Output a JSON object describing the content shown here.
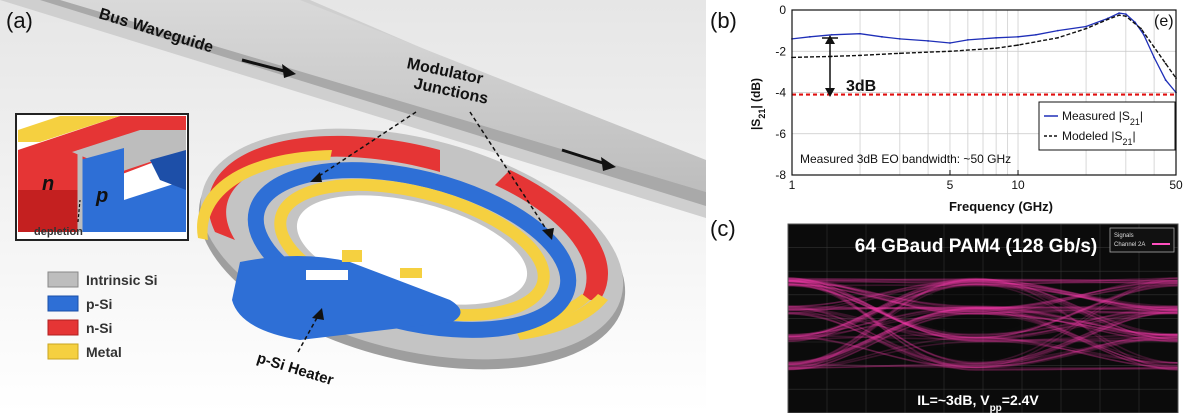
{
  "panel_a": {
    "label": "(a)",
    "bus_waveguide": "Bus Waveguide",
    "modulator_junctions": [
      "Modulator",
      "Junctions"
    ],
    "heater": "p-Si Heater",
    "inset_n": "n",
    "inset_p": "p",
    "inset_depletion": "depletion",
    "legend": [
      {
        "label": "Intrinsic Si",
        "color": "#bdbdbd"
      },
      {
        "label": "p-Si",
        "color": "#2e6fd6"
      },
      {
        "label": "n-Si",
        "color": "#e53535"
      },
      {
        "label": "Metal",
        "color": "#f5d040"
      }
    ]
  },
  "panel_b": {
    "label": "(b)",
    "corner_label": "(e)",
    "annotation_3db": "3dB",
    "bandwidth_note": "Measured  3dB EO bandwidth: ~50 GHz",
    "legend_measured": "Measured |S21|",
    "legend_modeled": "Modeled |S21|",
    "xlabel": "Frequency (GHz)",
    "ylabel": "|S21| (dB)"
  },
  "panel_c": {
    "label": "(c)",
    "title": "64 GBaud PAM4 (128 Gb/s)",
    "footer": "IL=~3dB, Vpp=2.4V",
    "signals_box": [
      "Signals",
      "Channel 2A"
    ]
  },
  "chart_data": {
    "type": "line",
    "xscale": "log",
    "xlabel": "Frequency (GHz)",
    "ylabel": "|S21| (dB)",
    "xlim": [
      1,
      50
    ],
    "ylim": [
      -8,
      0
    ],
    "xticks": [
      1,
      5,
      10,
      50
    ],
    "yticks": [
      0,
      -2,
      -4,
      -6,
      -8
    ],
    "grid": true,
    "legend_position": "lower-right",
    "reference_line_y": -4.1,
    "series": [
      {
        "name": "Measured |S21|",
        "color": "#1f2fb8",
        "style": "solid",
        "x": [
          1,
          1.2,
          1.5,
          2,
          2.5,
          3,
          4,
          5,
          6,
          8,
          10,
          12,
          15,
          20,
          25,
          28,
          30,
          33,
          36,
          40,
          45,
          50
        ],
        "y": [
          -1.4,
          -1.3,
          -1.2,
          -1.15,
          -1.3,
          -1.4,
          -1.5,
          -1.6,
          -1.45,
          -1.35,
          -1.3,
          -1.2,
          -1.0,
          -0.8,
          -0.4,
          -0.15,
          -0.2,
          -0.6,
          -1.2,
          -2.3,
          -3.4,
          -4.0
        ]
      },
      {
        "name": "Modeled |S21|",
        "color": "#111111",
        "style": "dashed",
        "x": [
          1,
          1.5,
          2,
          3,
          5,
          8,
          10,
          15,
          20,
          25,
          28,
          30,
          35,
          40,
          45,
          50
        ],
        "y": [
          -2.3,
          -2.25,
          -2.2,
          -2.1,
          -2.0,
          -1.85,
          -1.7,
          -1.35,
          -0.9,
          -0.45,
          -0.25,
          -0.3,
          -0.9,
          -1.8,
          -2.6,
          -3.3
        ]
      }
    ]
  }
}
